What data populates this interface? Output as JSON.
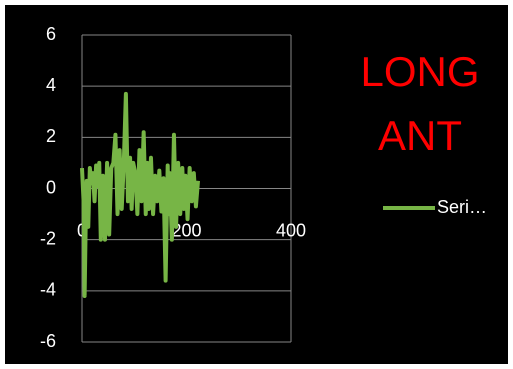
{
  "chart_data": {
    "type": "line",
    "title": "LONG ANT",
    "x": [
      0,
      3,
      5,
      7,
      9,
      12,
      15,
      18,
      21,
      24,
      27,
      30,
      33,
      36,
      40,
      44,
      48,
      52,
      56,
      60,
      64,
      68,
      72,
      76,
      80,
      84,
      88,
      92,
      95,
      98,
      102,
      106,
      110,
      114,
      118,
      122,
      125,
      128,
      132,
      136,
      140,
      144,
      148,
      152,
      156,
      160,
      164,
      166,
      168,
      172,
      176,
      180,
      184,
      188,
      192,
      195,
      198,
      202,
      206,
      210,
      214,
      218,
      222
    ],
    "series": [
      {
        "name": "Seri…",
        "color": "#77b546",
        "values": [
          0.8,
          -0.5,
          -4.2,
          -1.5,
          0.3,
          -1.5,
          0.8,
          0.2,
          0.6,
          -0.5,
          0.9,
          0.1,
          1.0,
          -2.0,
          0.5,
          -2.0,
          1.0,
          -1.8,
          0.8,
          1.0,
          2.1,
          -1.0,
          1.5,
          -0.8,
          1.0,
          3.7,
          -0.5,
          1.2,
          -0.8,
          1.0,
          0.6,
          -1.0,
          1.5,
          -0.5,
          2.2,
          -1.0,
          1.0,
          -0.8,
          1.2,
          -1.0,
          0.5,
          -0.5,
          0.7,
          -0.9,
          0.4,
          -3.6,
          0.9,
          -1.0,
          0.6,
          -2.0,
          2.1,
          -1.5,
          1.0,
          -1.0,
          0.8,
          -0.8,
          0.5,
          -1.2,
          0.8,
          -0.5,
          0.6,
          -0.7,
          0.3
        ]
      }
    ],
    "xlim": [
      0,
      400
    ],
    "xticks": [
      0,
      200,
      400
    ],
    "ylim": [
      -6,
      6
    ],
    "yticks": [
      -6,
      -4,
      -2,
      0,
      2,
      4,
      6
    ],
    "grid": true,
    "legend": "right"
  }
}
